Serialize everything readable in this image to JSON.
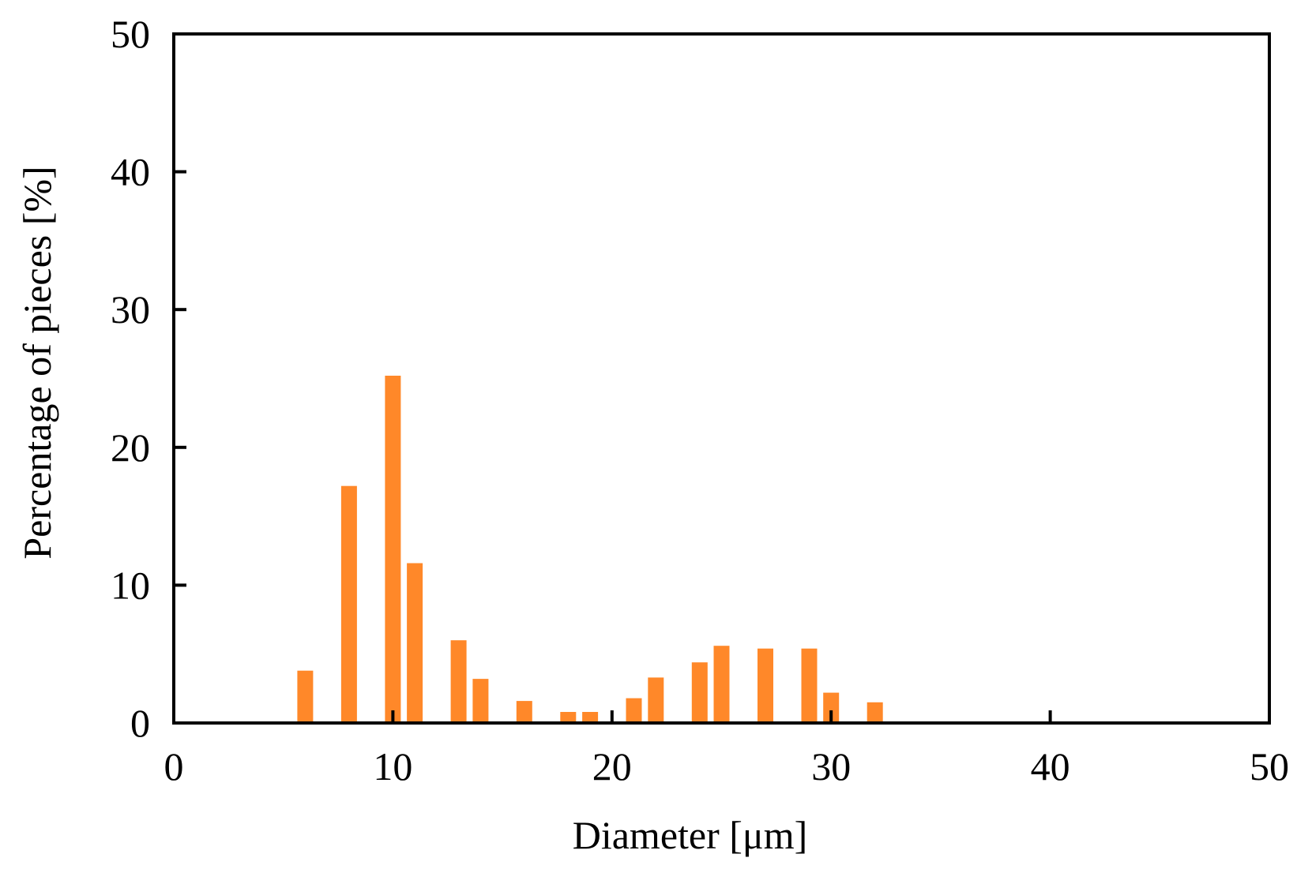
{
  "chart_data": {
    "type": "bar",
    "xlabel": "Diameter [μm]",
    "ylabel": "Percentage of pieces [%]",
    "xlim": [
      0,
      50
    ],
    "ylim": [
      0,
      50
    ],
    "xticks": [
      0,
      10,
      20,
      30,
      40,
      50
    ],
    "yticks": [
      0,
      10,
      20,
      30,
      40,
      50
    ],
    "grid": false,
    "bar_color": "#ff8829",
    "x": [
      6,
      8,
      10,
      11,
      13,
      14,
      16,
      18,
      19,
      21,
      22,
      24,
      25,
      27,
      29,
      30,
      32
    ],
    "values": [
      3.8,
      17.2,
      25.2,
      11.6,
      6.0,
      3.2,
      1.6,
      0.8,
      0.8,
      1.8,
      3.3,
      4.4,
      5.6,
      5.4,
      5.4,
      2.2,
      1.5
    ]
  }
}
